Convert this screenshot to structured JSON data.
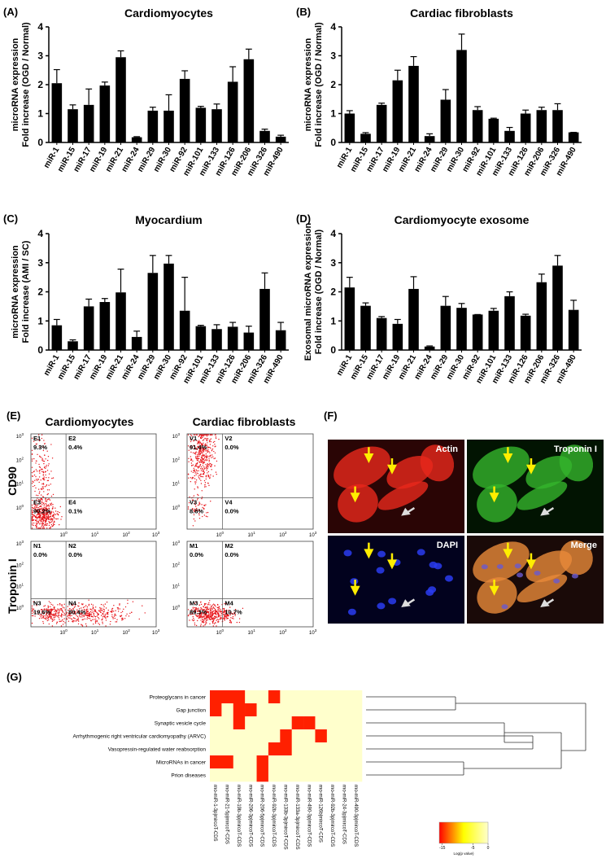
{
  "chart_data": [
    {
      "type": "bar",
      "panel": "(A)",
      "title": "Cardiomyocytes",
      "ylabel": [
        "microRNA expression",
        "Fold increase (OGD / Normal)"
      ],
      "categories": [
        "miR-1",
        "miR-15",
        "miR-17",
        "miR-19",
        "miR-21",
        "miR-24",
        "miR-29",
        "miR-30",
        "miR-92",
        "miR-101",
        "miR-133",
        "miR-126",
        "miR-206",
        "miR-326",
        "miR-490"
      ],
      "values": [
        2.05,
        1.15,
        1.3,
        1.97,
        2.95,
        0.18,
        1.1,
        1.1,
        2.2,
        1.2,
        1.15,
        2.1,
        2.88,
        0.4,
        0.2
      ],
      "errors": [
        0.47,
        0.15,
        0.55,
        0.12,
        0.22,
        0.02,
        0.12,
        0.55,
        0.28,
        0.05,
        0.18,
        0.52,
        0.35,
        0.06,
        0.05
      ],
      "color": "#000000",
      "ylim": [
        0,
        4
      ],
      "yticks": [
        0,
        1,
        2,
        3,
        4
      ]
    },
    {
      "type": "bar",
      "panel": "(B)",
      "title": "Cardiac fibroblasts",
      "ylabel": [
        "microRNA expression",
        "Fold increase (OGD / Normal)"
      ],
      "categories": [
        "miR-1",
        "miR-15",
        "miR-17",
        "miR-19",
        "miR-21",
        "miR-24",
        "miR-29",
        "miR-30",
        "miR-92",
        "miR-101",
        "miR-133",
        "miR-126",
        "miR-206",
        "miR-326",
        "miR-490"
      ],
      "values": [
        1.0,
        0.3,
        1.3,
        2.15,
        2.65,
        0.22,
        1.48,
        3.2,
        1.12,
        0.82,
        0.4,
        1.0,
        1.12,
        1.12,
        0.35
      ],
      "errors": [
        0.1,
        0.04,
        0.06,
        0.35,
        0.32,
        0.08,
        0.35,
        0.55,
        0.12,
        0.02,
        0.12,
        0.12,
        0.1,
        0.22,
        0.0
      ],
      "color": "#000000",
      "ylim": [
        0,
        4
      ],
      "yticks": [
        0,
        1,
        2,
        3,
        4
      ]
    },
    {
      "type": "bar",
      "panel": "(C)",
      "title": "Myocardium",
      "ylabel": [
        "microRNA expression",
        "Fold increase (AMI / SC)"
      ],
      "categories": [
        "miR-1",
        "miR-15",
        "miR-17",
        "miR-19",
        "miR-21",
        "miR-24",
        "miR-29",
        "miR-30",
        "miR-92",
        "miR-101",
        "miR-133",
        "miR-126",
        "miR-206",
        "miR-326",
        "miR-490"
      ],
      "values": [
        0.85,
        0.3,
        1.5,
        1.65,
        1.98,
        0.45,
        2.65,
        2.97,
        1.35,
        0.82,
        0.72,
        0.8,
        0.6,
        2.1,
        0.68
      ],
      "errors": [
        0.2,
        0.05,
        0.25,
        0.12,
        0.8,
        0.2,
        0.6,
        0.28,
        1.15,
        0.03,
        0.15,
        0.15,
        0.22,
        0.55,
        0.27
      ],
      "color": "#000000",
      "ylim": [
        0,
        4
      ],
      "yticks": [
        0,
        1,
        2,
        3,
        4
      ]
    },
    {
      "type": "bar",
      "panel": "(D)",
      "title": "Cardiomyocyte exosome",
      "ylabel": [
        "Exosomal microRNA expression",
        "Fold increase (OGD / Normal)"
      ],
      "categories": [
        "miR-1",
        "miR-15",
        "miR-17",
        "miR-19",
        "miR-21",
        "miR-24",
        "miR-29",
        "miR-30",
        "miR-92",
        "miR-101",
        "miR-133",
        "miR-126",
        "miR-206",
        "miR-326",
        "miR-490"
      ],
      "values": [
        2.15,
        1.52,
        1.1,
        0.9,
        2.1,
        0.12,
        1.52,
        1.45,
        1.22,
        1.35,
        1.85,
        1.18,
        2.33,
        2.9,
        1.38
      ],
      "errors": [
        0.35,
        0.1,
        0.05,
        0.15,
        0.42,
        0.02,
        0.32,
        0.15,
        0.0,
        0.08,
        0.15,
        0.05,
        0.28,
        0.35,
        0.33
      ],
      "color": "#000000",
      "ylim": [
        0,
        4
      ],
      "yticks": [
        0,
        1,
        2,
        3,
        4
      ]
    },
    {
      "type": "heatmap",
      "panel": "(G)",
      "rows": [
        "Proteoglycans in cancer",
        "Gap junction",
        "Synaptic vesicle cycle",
        "Arrhythmogenic right ventricular cardiomyopathy (ARVC)",
        "Vasopressin-regulated water reabsorption",
        "MicroRNAs in cancer",
        "Prion diseases"
      ],
      "columns": [
        "rno-miR-1-3p|mircoT-CDS",
        "rno-miR-21-5p|mircoT-CDS",
        "rno-miR-19b-3p|mircoT-CDS",
        "rno-miR-206-3p|mircoT-CDS",
        "rno-miR-206-5p|mircoT-CDS",
        "rno-miR-92b-3p|mircoT-CDS",
        "rno-miR-133b-3p|mircoT-CDS",
        "rno-miR-133a-3p|mircoT-CDS",
        "rno-miR-490-3p|mircoT-CDS",
        "rno-miR-126b|mircoT-CDS",
        "rno-miR-92b-3p|mircoT-CDS",
        "rno-miR-24-3p|mircoT-CDS",
        "rno-miR-490-3p|mircoT-CDS"
      ],
      "values": [
        [
          -15,
          -15,
          -15,
          0,
          0,
          -15,
          0,
          0,
          0,
          0,
          0,
          0,
          0
        ],
        [
          -15,
          0,
          -15,
          -15,
          0,
          0,
          0,
          0,
          0,
          0,
          0,
          0,
          0
        ],
        [
          0,
          0,
          -15,
          0,
          0,
          0,
          0,
          -15,
          -15,
          0,
          0,
          0,
          0
        ],
        [
          0,
          0,
          0,
          0,
          0,
          0,
          -15,
          0,
          0,
          -15,
          0,
          0,
          0
        ],
        [
          0,
          0,
          0,
          0,
          0,
          -15,
          -15,
          0,
          0,
          0,
          0,
          0,
          0
        ],
        [
          -15,
          -15,
          0,
          0,
          -15,
          0,
          0,
          0,
          0,
          0,
          0,
          0,
          0
        ],
        [
          0,
          0,
          0,
          0,
          -15,
          0,
          0,
          0,
          0,
          0,
          0,
          0,
          0
        ]
      ],
      "zlim": [
        -16,
        0
      ],
      "colorbar_ticks": [
        -15,
        -5,
        0
      ],
      "colorbar_label": "Log(p value)"
    }
  ],
  "flow": {
    "panel": "(E)",
    "columns": [
      "Cardiomyocytes",
      "Cardiac fibroblasts"
    ],
    "rows": [
      "CD90",
      "Troponin I"
    ],
    "tick_base": "10",
    "tick_exponents": [
      "0",
      "1",
      "2",
      "3"
    ],
    "plots": [
      {
        "quadrants": [
          {
            "name": "E1",
            "percent": "9.3%"
          },
          {
            "name": "E2",
            "percent": "0.4%"
          },
          {
            "name": "E3",
            "percent": "90.2%"
          },
          {
            "name": "E4",
            "percent": "0.1%"
          }
        ]
      },
      {
        "quadrants": [
          {
            "name": "V1",
            "percent": "91.4%"
          },
          {
            "name": "V2",
            "percent": "0.0%"
          },
          {
            "name": "V3",
            "percent": "8.6%"
          },
          {
            "name": "V4",
            "percent": "0.0%"
          }
        ]
      },
      {
        "quadrants": [
          {
            "name": "N1",
            "percent": "0.0%"
          },
          {
            "name": "N2",
            "percent": "0.0%"
          },
          {
            "name": "N3",
            "percent": "19.6%"
          },
          {
            "name": "N4",
            "percent": "80.4%"
          }
        ]
      },
      {
        "quadrants": [
          {
            "name": "M1",
            "percent": "0.0%"
          },
          {
            "name": "M2",
            "percent": "0.0%"
          },
          {
            "name": "M3",
            "percent": "89.3%"
          },
          {
            "name": "M4",
            "percent": "10.7%"
          }
        ]
      }
    ]
  },
  "microscopy": {
    "panel": "(F)",
    "images": [
      "Actin",
      "Troponin I",
      "DAPI",
      "Merge"
    ]
  }
}
